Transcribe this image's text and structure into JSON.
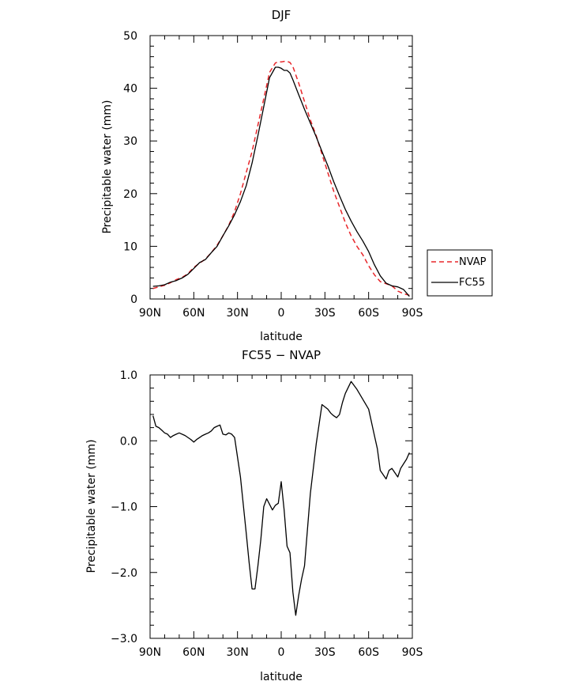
{
  "chart_data": [
    {
      "type": "line",
      "title": "DJF",
      "xlabel": "latitude",
      "ylabel": "Precipitable water (mm)",
      "xlim": [
        90,
        -90
      ],
      "ylim": [
        0,
        50
      ],
      "x_ticks": [
        90,
        60,
        30,
        0,
        -30,
        -60,
        -90
      ],
      "x_tick_labels": [
        "90N",
        "60N",
        "30N",
        "0",
        "30S",
        "60S",
        "90S"
      ],
      "y_ticks": [
        0,
        10,
        20,
        30,
        40,
        50
      ],
      "y_tick_labels": [
        "0",
        "10",
        "20",
        "30",
        "40",
        "50"
      ],
      "legend_position": "right-outside",
      "series": [
        {
          "name": "NVAP",
          "color": "#e8262a",
          "dash": "dashed",
          "x": [
            88,
            84,
            80,
            76,
            72,
            68,
            64,
            60,
            56,
            52,
            48,
            44,
            40,
            36,
            32,
            28,
            24,
            20,
            16,
            12,
            8,
            4,
            2,
            0,
            -2,
            -4,
            -6,
            -8,
            -12,
            -16,
            -20,
            -24,
            -28,
            -32,
            -36,
            -40,
            -44,
            -48,
            -52,
            -56,
            -60,
            -64,
            -68,
            -72,
            -76,
            -80,
            -84,
            -88
          ],
          "y": [
            2.0,
            2.3,
            2.6,
            3.1,
            3.7,
            4.1,
            4.8,
            6.0,
            6.8,
            7.6,
            8.8,
            10.2,
            12.0,
            14.0,
            16.6,
            20.0,
            24.0,
            28.0,
            33.0,
            38.0,
            43.0,
            44.8,
            45.0,
            45.0,
            45.1,
            45.1,
            44.9,
            44.1,
            41.0,
            37.5,
            34.0,
            31.0,
            27.5,
            24.0,
            20.5,
            17.5,
            14.5,
            12.0,
            10.0,
            8.4,
            6.3,
            4.6,
            3.3,
            2.9,
            2.5,
            1.5,
            1.0,
            0.7
          ]
        },
        {
          "name": "FC55",
          "color": "#000000",
          "dash": "solid",
          "x": [
            88,
            84,
            80,
            76,
            72,
            68,
            64,
            60,
            56,
            52,
            48,
            44,
            40,
            36,
            32,
            28,
            24,
            20,
            16,
            12,
            8,
            4,
            2,
            0,
            -2,
            -4,
            -6,
            -8,
            -12,
            -16,
            -20,
            -24,
            -28,
            -32,
            -36,
            -40,
            -44,
            -48,
            -52,
            -56,
            -60,
            -64,
            -68,
            -72,
            -76,
            -80,
            -84,
            -88
          ],
          "y": [
            2.4,
            2.5,
            2.7,
            3.2,
            3.5,
            4.0,
            4.7,
            5.8,
            6.9,
            7.5,
            8.8,
            10.0,
            12.0,
            13.9,
            16.0,
            18.5,
            21.5,
            25.8,
            31.0,
            36.5,
            42.0,
            44.0,
            44.0,
            43.8,
            43.4,
            43.4,
            42.9,
            41.6,
            38.8,
            36.0,
            33.4,
            30.8,
            28.0,
            25.3,
            22.3,
            19.6,
            17.0,
            14.8,
            12.8,
            11.0,
            9.0,
            6.5,
            4.4,
            3.0,
            2.5,
            2.3,
            1.8,
            0.5
          ]
        }
      ]
    },
    {
      "type": "line",
      "title": "FC55 − NVAP",
      "xlabel": "latitude",
      "ylabel": "Precipitable water (mm)",
      "xlim": [
        90,
        -90
      ],
      "ylim": [
        -3,
        1
      ],
      "x_ticks": [
        90,
        60,
        30,
        0,
        -30,
        -60,
        -90
      ],
      "x_tick_labels": [
        "90N",
        "60N",
        "30N",
        "0",
        "30S",
        "60S",
        "90S"
      ],
      "y_ticks": [
        -3,
        -2,
        -1,
        0,
        1
      ],
      "y_tick_labels": [
        "−3.0",
        "−2.0",
        "−1.0",
        "0.0",
        "1.0"
      ],
      "series": [
        {
          "color": "#000000",
          "dash": "solid",
          "x": [
            88,
            86,
            84,
            82,
            80,
            78,
            76,
            74,
            72,
            70,
            66,
            62,
            60,
            58,
            54,
            52,
            50,
            48,
            46,
            44,
            42,
            40,
            38,
            36,
            34,
            32,
            28,
            24,
            22,
            20,
            18,
            16,
            14,
            12,
            10,
            6,
            4,
            2,
            0,
            -2,
            -4,
            -6,
            -8,
            -10,
            -12,
            -14,
            -16,
            -20,
            -24,
            -28,
            -32,
            -34,
            -36,
            -38,
            -40,
            -42,
            -44,
            -48,
            -52,
            -56,
            -60,
            -64,
            -66,
            -68,
            -72,
            -74,
            -76,
            -80,
            -82,
            -84,
            -86,
            -88
          ],
          "y": [
            0.38,
            0.22,
            0.2,
            0.16,
            0.12,
            0.1,
            0.05,
            0.08,
            0.1,
            0.12,
            0.08,
            0.02,
            -0.02,
            0.02,
            0.08,
            0.1,
            0.12,
            0.15,
            0.2,
            0.22,
            0.24,
            0.1,
            0.09,
            0.12,
            0.1,
            0.05,
            -0.55,
            -1.4,
            -1.85,
            -2.25,
            -2.25,
            -1.9,
            -1.5,
            -1.0,
            -0.88,
            -1.05,
            -0.98,
            -0.95,
            -0.62,
            -1.05,
            -1.6,
            -1.7,
            -2.3,
            -2.65,
            -2.35,
            -2.1,
            -1.9,
            -0.8,
            -0.05,
            0.55,
            0.48,
            0.42,
            0.38,
            0.35,
            0.4,
            0.58,
            0.72,
            0.9,
            0.78,
            0.63,
            0.48,
            0.08,
            -0.12,
            -0.45,
            -0.58,
            -0.45,
            -0.42,
            -0.55,
            -0.42,
            -0.35,
            -0.28,
            -0.18
          ]
        }
      ]
    }
  ]
}
